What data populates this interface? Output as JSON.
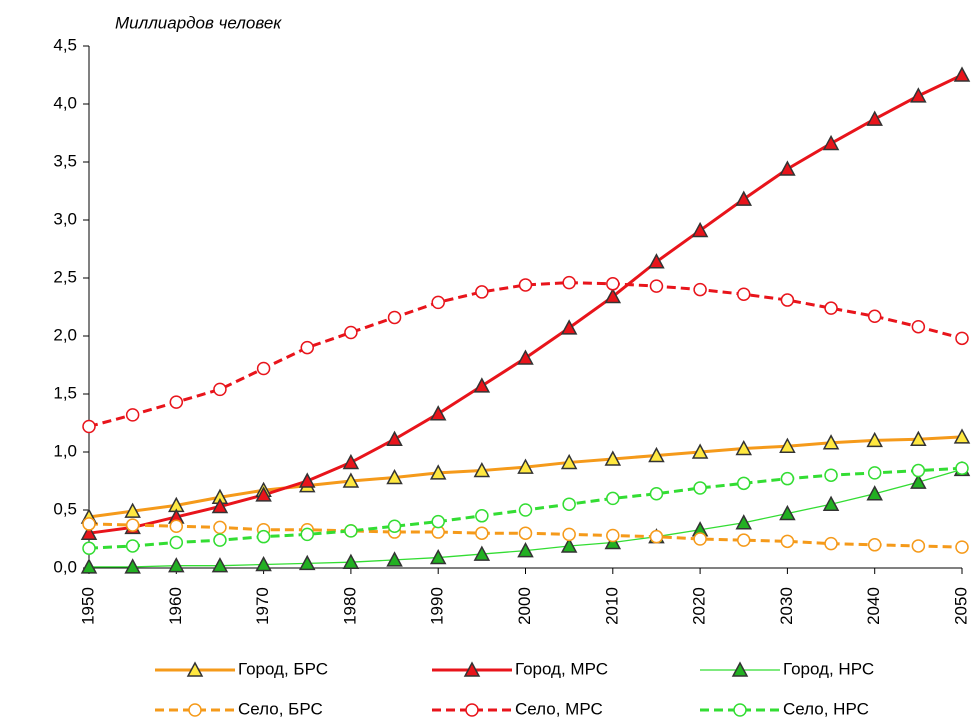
{
  "chart_data": {
    "type": "line",
    "y_axis_label": "Миллиардов человек",
    "x": [
      1950,
      1955,
      1960,
      1965,
      1970,
      1975,
      1980,
      1985,
      1990,
      1995,
      2000,
      2005,
      2010,
      2015,
      2020,
      2025,
      2030,
      2035,
      2040,
      2045,
      2050
    ],
    "xlim": [
      1950,
      2050
    ],
    "xticks": [
      1950,
      1960,
      1970,
      1980,
      1990,
      2000,
      2010,
      2020,
      2030,
      2040,
      2050
    ],
    "ylim": [
      0,
      4.5
    ],
    "yticks": [
      {
        "value": 0,
        "label": "0,0"
      },
      {
        "value": 0.5,
        "label": "0,5"
      },
      {
        "value": 1,
        "label": "1,0"
      },
      {
        "value": 1.5,
        "label": "1,5"
      },
      {
        "value": 2,
        "label": "2,0"
      },
      {
        "value": 2.5,
        "label": "2,5"
      },
      {
        "value": 3,
        "label": "3,0"
      },
      {
        "value": 3.5,
        "label": "3,5"
      },
      {
        "value": 4,
        "label": "4,0"
      },
      {
        "value": 4.5,
        "label": "4,5"
      }
    ],
    "grid": false,
    "legend": "bottom",
    "series": [
      {
        "name": "Город, БРС",
        "color": "#f59a1a",
        "marker": "triangle",
        "marker_fill": "#ffe840",
        "dashed": false,
        "line_width": 3,
        "values": [
          0.44,
          0.49,
          0.54,
          0.61,
          0.67,
          0.71,
          0.75,
          0.78,
          0.82,
          0.84,
          0.87,
          0.91,
          0.94,
          0.97,
          1.0,
          1.03,
          1.05,
          1.08,
          1.1,
          1.11,
          1.13
        ]
      },
      {
        "name": "Город, МРС",
        "color": "#e8141b",
        "marker": "triangle",
        "marker_fill": "#e8141b",
        "dashed": false,
        "line_width": 3,
        "values": [
          0.3,
          0.35,
          0.44,
          0.53,
          0.63,
          0.75,
          0.91,
          1.11,
          1.33,
          1.57,
          1.81,
          2.07,
          2.34,
          2.64,
          2.91,
          3.18,
          3.44,
          3.66,
          3.87,
          4.07,
          4.25
        ]
      },
      {
        "name": "Город, НРС",
        "color": "#33dd33",
        "marker": "triangle",
        "marker_fill": "#22b022",
        "dashed": false,
        "line_width": 1.3,
        "values": [
          0.01,
          0.01,
          0.02,
          0.02,
          0.03,
          0.04,
          0.05,
          0.07,
          0.09,
          0.12,
          0.15,
          0.19,
          0.22,
          0.27,
          0.33,
          0.39,
          0.47,
          0.55,
          0.64,
          0.74,
          0.85
        ]
      },
      {
        "name": "Село, БРС",
        "color": "#f59a1a",
        "marker": "circle",
        "marker_fill": "#ffffff",
        "dashed": true,
        "line_width": 3,
        "values": [
          0.38,
          0.37,
          0.36,
          0.35,
          0.33,
          0.33,
          0.32,
          0.31,
          0.31,
          0.3,
          0.3,
          0.29,
          0.28,
          0.27,
          0.25,
          0.24,
          0.23,
          0.21,
          0.2,
          0.19,
          0.18
        ]
      },
      {
        "name": "Село, МРС",
        "color": "#e8141b",
        "marker": "circle",
        "marker_fill": "#ffffff",
        "dashed": true,
        "line_width": 3,
        "values": [
          1.22,
          1.32,
          1.43,
          1.54,
          1.72,
          1.9,
          2.03,
          2.16,
          2.29,
          2.38,
          2.44,
          2.46,
          2.45,
          2.43,
          2.4,
          2.36,
          2.31,
          2.24,
          2.17,
          2.08,
          1.98
        ]
      },
      {
        "name": "Село, НРС",
        "color": "#33dd33",
        "marker": "circle",
        "marker_fill": "#ffffff",
        "dashed": true,
        "line_width": 3,
        "values": [
          0.17,
          0.19,
          0.22,
          0.24,
          0.27,
          0.29,
          0.32,
          0.36,
          0.4,
          0.45,
          0.5,
          0.55,
          0.6,
          0.64,
          0.69,
          0.73,
          0.77,
          0.8,
          0.82,
          0.84,
          0.86
        ]
      }
    ]
  }
}
